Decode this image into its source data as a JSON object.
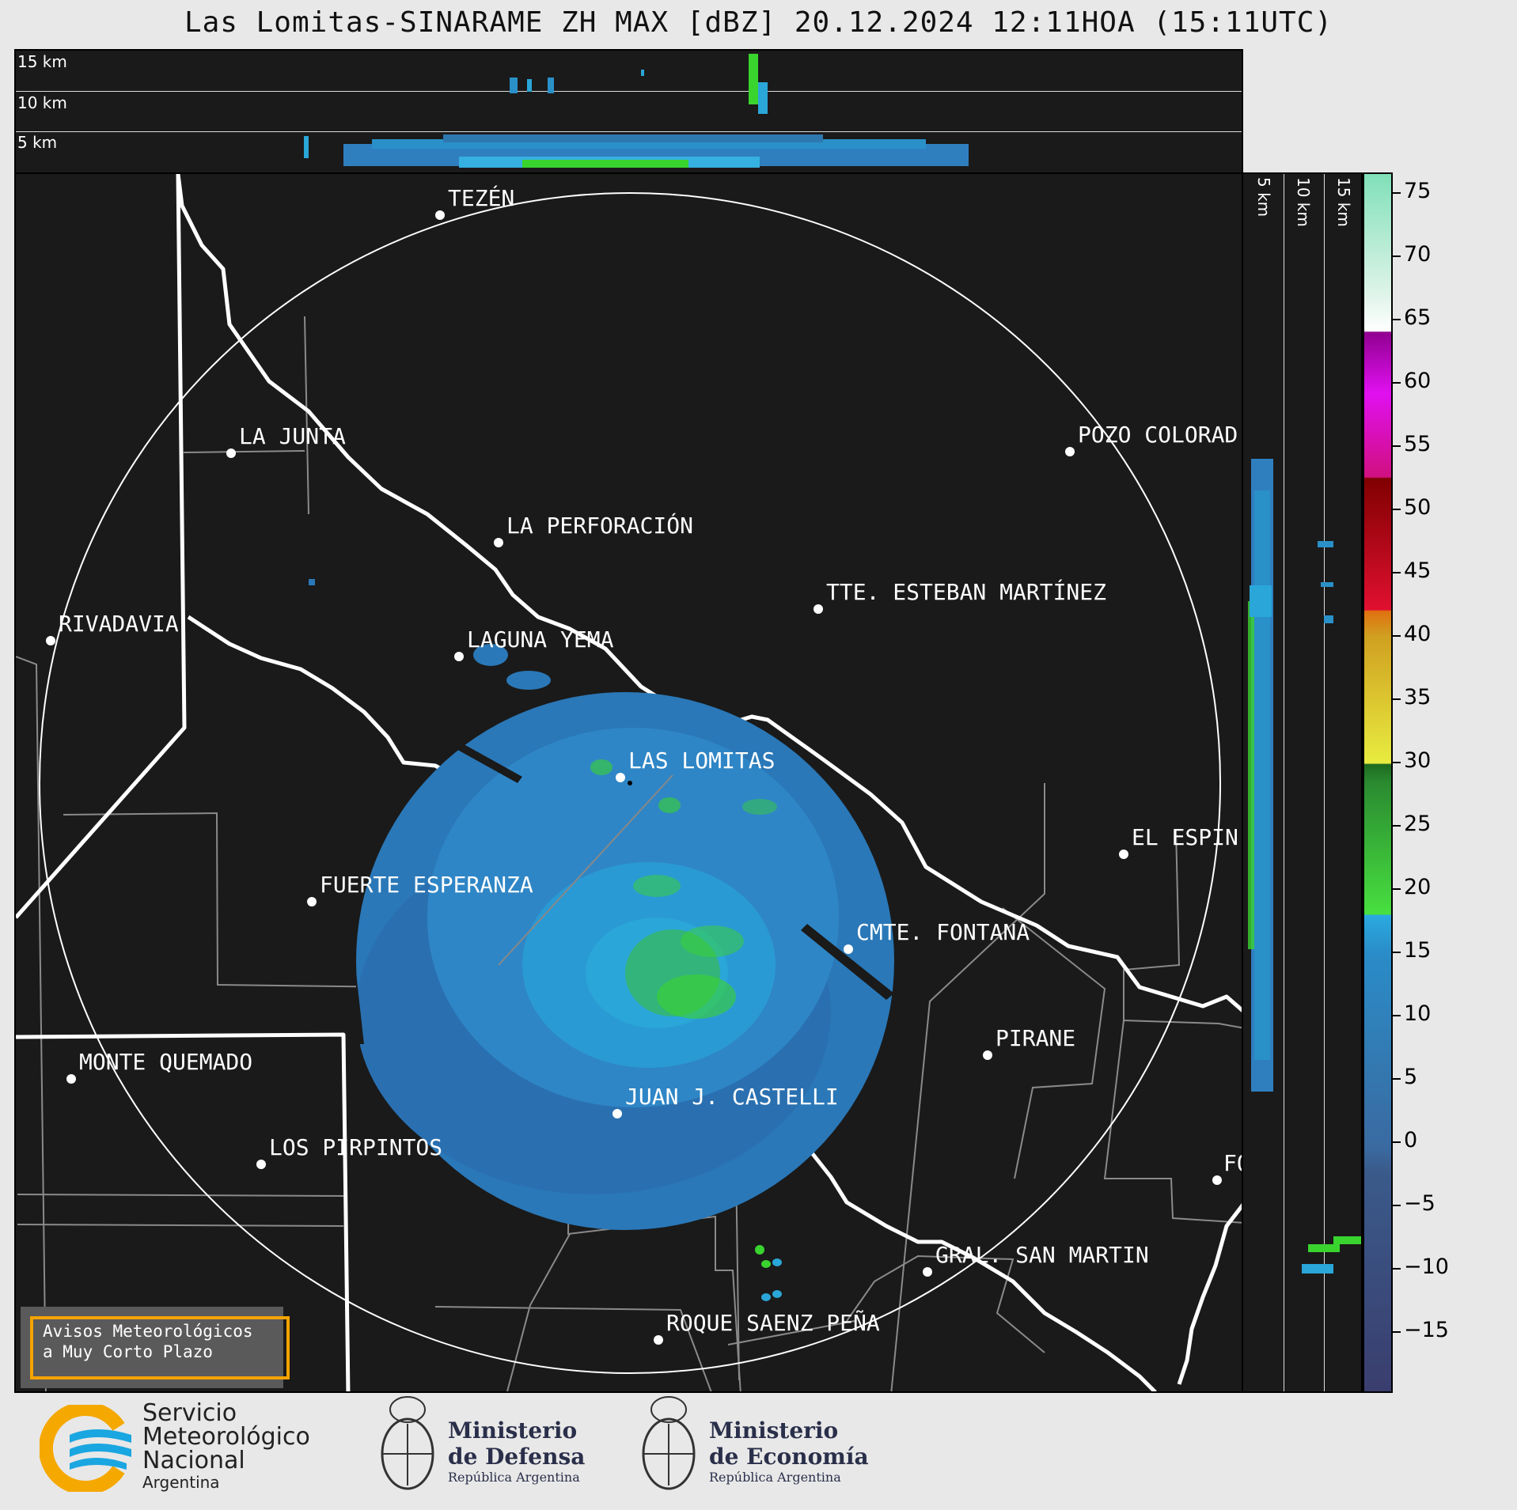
{
  "title": "Las Lomitas-SINARAME ZH MAX [dBZ] 20.12.2024 12:11HOA (15:11UTC)",
  "top_profile": {
    "altitudes": [
      "15 km",
      "10 km",
      "5 km"
    ]
  },
  "side_profile": {
    "altitudes": [
      "5 km",
      "10 km",
      "15 km"
    ]
  },
  "cities": [
    {
      "name": "TEZÉN"
    },
    {
      "name": "LA JUNTA"
    },
    {
      "name": "POZO COLORAD"
    },
    {
      "name": "LA PERFORACIÓN"
    },
    {
      "name": "TTE. ESTEBAN MARTÍNEZ"
    },
    {
      "name": "RIVADAVIA"
    },
    {
      "name": "LAGUNA YEMA"
    },
    {
      "name": "LAS LOMITAS"
    },
    {
      "name": "EL ESPIN"
    },
    {
      "name": "FUERTE ESPERANZA"
    },
    {
      "name": "CMTE. FONTANA"
    },
    {
      "name": "PIRANE"
    },
    {
      "name": "MONTE QUEMADO"
    },
    {
      "name": "JUAN J. CASTELLI"
    },
    {
      "name": "LOS PIRPINTOS"
    },
    {
      "name": "GRAL. SAN MARTIN"
    },
    {
      "name": "ROQUE SAENZ PEÑA"
    },
    {
      "name": "FO"
    }
  ],
  "colorbar": {
    "unit": "dBZ",
    "range": [
      -20,
      77
    ],
    "ticks": [
      "75",
      "70",
      "65",
      "60",
      "55",
      "50",
      "45",
      "40",
      "35",
      "30",
      "25",
      "20",
      "15",
      "10",
      "5",
      "0",
      "−5",
      "−10",
      "−15"
    ],
    "colors": {
      "below_0": "#3a4a7a",
      "blue_low": "#2f6fa8",
      "blue_high": "#2aa6d8",
      "green": "#3ad42f",
      "yellow": "#d8d830",
      "orange": "#e08a10",
      "red": "#c00010",
      "magenta": "#d010c8",
      "white": "#ffffff",
      "mint": "#80e0b8"
    }
  },
  "warning_box": {
    "line1": "Avisos Meteorológicos",
    "line2": "a Muy Corto Plazo"
  },
  "footer": {
    "smn": {
      "line1": "Servicio",
      "line2": "Meteorológico",
      "line3": "Nacional",
      "line4": "Argentina"
    },
    "defensa": {
      "line1": "Ministerio",
      "line2": "de Defensa",
      "line3": "República Argentina"
    },
    "economia": {
      "line1": "Ministerio",
      "line2": "de Economía",
      "line3": "República Argentina"
    }
  }
}
